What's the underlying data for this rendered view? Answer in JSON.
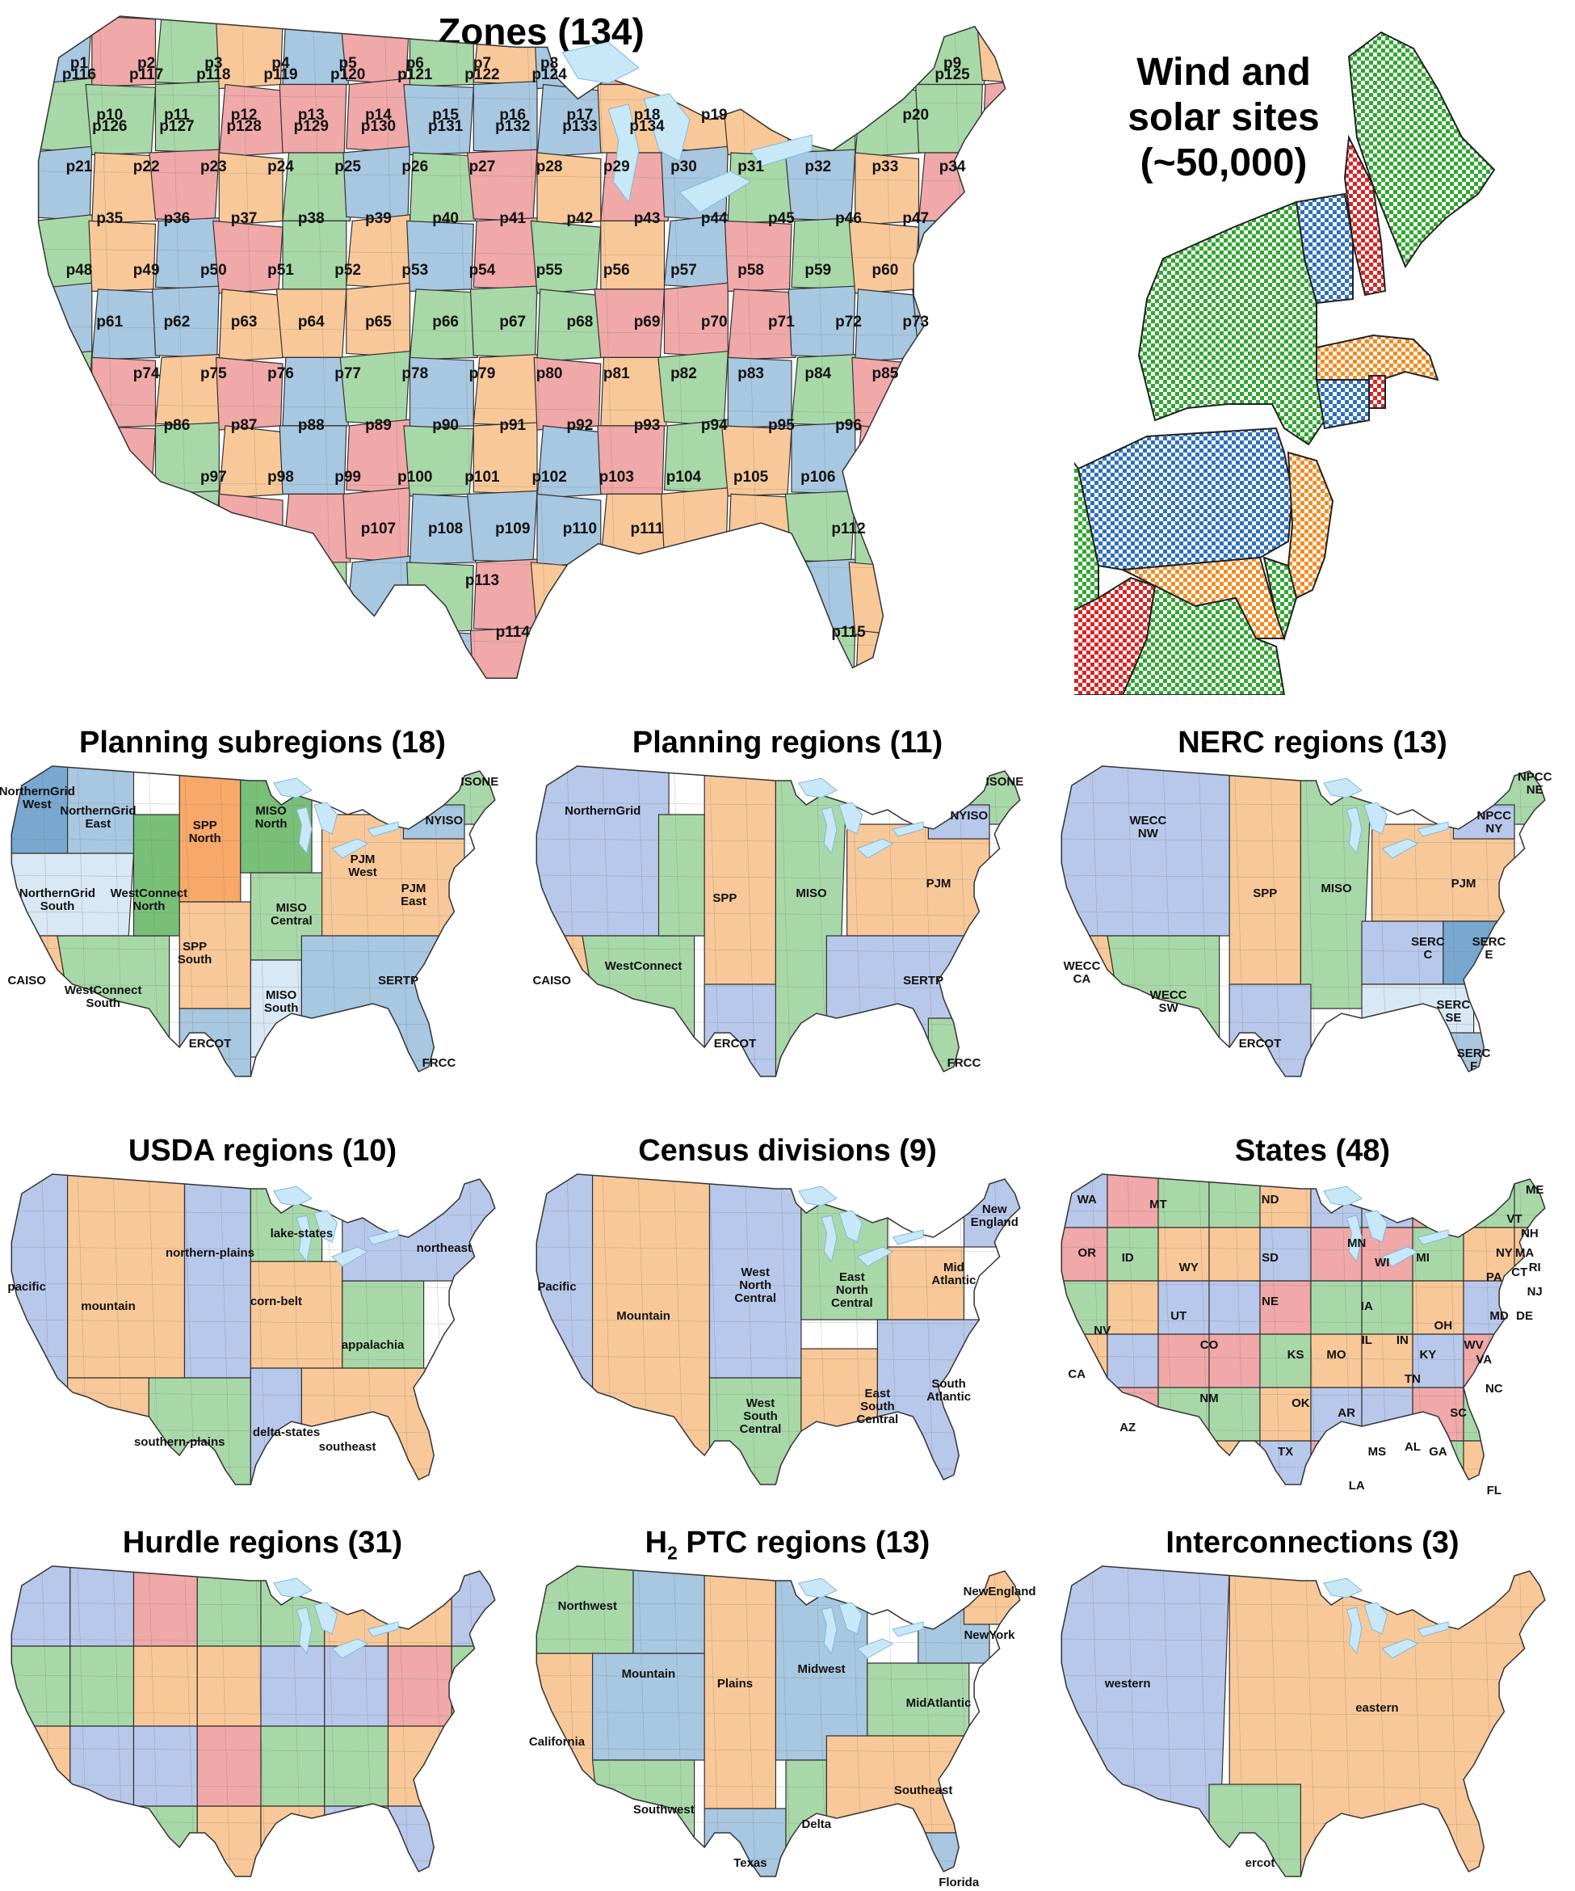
{
  "colors": {
    "blue": "#a8c7e0",
    "orange": "#f9c898",
    "green": "#a8d8a8",
    "red": "#f0a8a8",
    "periwinkle": "#b8c8ea",
    "lake": "#c8e8f8",
    "border": "#333333",
    "orange_dark": "#f8a868",
    "green_dark": "#78c078",
    "blue_dark": "#78a8d0",
    "blue_light": "#d8e8f4"
  },
  "zones_panel": {
    "title": "Zones (134)",
    "labels": [
      "p1",
      "p2",
      "p3",
      "p4",
      "p5",
      "p6",
      "p7",
      "p8",
      "p9",
      "p10",
      "p11",
      "p12",
      "p13",
      "p14",
      "p15",
      "p16",
      "p17",
      "p18",
      "p19",
      "p20",
      "p21",
      "p22",
      "p23",
      "p24",
      "p25",
      "p26",
      "p27",
      "p28",
      "p29",
      "p30",
      "p31",
      "p32",
      "p33",
      "p34",
      "p35",
      "p36",
      "p37",
      "p38",
      "p39",
      "p40",
      "p41",
      "p42",
      "p43",
      "p44",
      "p45",
      "p46",
      "p47",
      "p48",
      "p49",
      "p50",
      "p51",
      "p52",
      "p53",
      "p54",
      "p55",
      "p56",
      "p57",
      "p58",
      "p59",
      "p60",
      "p61",
      "p62",
      "p63",
      "p64",
      "p65",
      "p66",
      "p67",
      "p68",
      "p69",
      "p70",
      "p71",
      "p72",
      "p73",
      "p74",
      "p75",
      "p76",
      "p77",
      "p78",
      "p79",
      "p80",
      "p81",
      "p82",
      "p83",
      "p84",
      "p85",
      "p86",
      "p87",
      "p88",
      "p89",
      "p90",
      "p91",
      "p92",
      "p93",
      "p94",
      "p95",
      "p96",
      "p97",
      "p98",
      "p99",
      "p100",
      "p101",
      "p102",
      "p103",
      "p104",
      "p105",
      "p106",
      "p107",
      "p108",
      "p109",
      "p110",
      "p111",
      "p112",
      "p113",
      "p114",
      "p115",
      "p116",
      "p117",
      "p118",
      "p119",
      "p120",
      "p121",
      "p122",
      "p124",
      "p125",
      "p126",
      "p127",
      "p128",
      "p129",
      "p130",
      "p131",
      "p132",
      "p133",
      "p134"
    ]
  },
  "wind_panel": {
    "title_line1": "Wind and",
    "title_line2": "solar sites",
    "title_line3": "(~50,000)"
  },
  "small_maps": [
    {
      "title": "Planning subregions (18)",
      "labels": [
        {
          "text": "NorthernGrid West",
          "lines": [
            "NorthernGrid",
            "West"
          ]
        },
        {
          "text": "NorthernGrid East",
          "lines": [
            "NorthernGrid",
            "East"
          ]
        },
        {
          "text": "SPP North",
          "lines": [
            "SPP",
            "North"
          ]
        },
        {
          "text": "MISO North",
          "lines": [
            "MISO",
            "North"
          ]
        },
        {
          "text": "ISONE",
          "lines": [
            "ISONE"
          ]
        },
        {
          "text": "NYISO",
          "lines": [
            "NYISO"
          ]
        },
        {
          "text": "PJM West",
          "lines": [
            "PJM",
            "West"
          ]
        },
        {
          "text": "NorthernGrid South",
          "lines": [
            "NorthernGrid",
            "South"
          ]
        },
        {
          "text": "WestConnect North",
          "lines": [
            "WestConnect",
            "North"
          ]
        },
        {
          "text": "MISO Central",
          "lines": [
            "MISO",
            "Central"
          ]
        },
        {
          "text": "PJM East",
          "lines": [
            "PJM",
            "East"
          ]
        },
        {
          "text": "CAISO",
          "lines": [
            "CAISO"
          ]
        },
        {
          "text": "SPP South",
          "lines": [
            "SPP",
            "South"
          ]
        },
        {
          "text": "WestConnect South",
          "lines": [
            "WestConnect",
            "South"
          ]
        },
        {
          "text": "SERTP",
          "lines": [
            "SERTP"
          ]
        },
        {
          "text": "MISO South",
          "lines": [
            "MISO",
            "South"
          ]
        },
        {
          "text": "ERCOT",
          "lines": [
            "ERCOT"
          ]
        },
        {
          "text": "FRCC",
          "lines": [
            "FRCC"
          ]
        }
      ]
    },
    {
      "title": "Planning regions (11)",
      "labels": [
        {
          "text": "NorthernGrid",
          "lines": [
            "NorthernGrid"
          ]
        },
        {
          "text": "ISONE",
          "lines": [
            "ISONE"
          ]
        },
        {
          "text": "NYISO",
          "lines": [
            "NYISO"
          ]
        },
        {
          "text": "SPP",
          "lines": [
            "SPP"
          ]
        },
        {
          "text": "MISO",
          "lines": [
            "MISO"
          ]
        },
        {
          "text": "PJM",
          "lines": [
            "PJM"
          ]
        },
        {
          "text": "CAISO",
          "lines": [
            "CAISO"
          ]
        },
        {
          "text": "WestConnect",
          "lines": [
            "WestConnect"
          ]
        },
        {
          "text": "SERTP",
          "lines": [
            "SERTP"
          ]
        },
        {
          "text": "ERCOT",
          "lines": [
            "ERCOT"
          ]
        },
        {
          "text": "FRCC",
          "lines": [
            "FRCC"
          ]
        }
      ]
    },
    {
      "title": "NERC regions (13)",
      "labels": [
        {
          "text": "NPCC NE",
          "lines": [
            "NPCC",
            "NE"
          ]
        },
        {
          "text": "WECC NW",
          "lines": [
            "WECC",
            "NW"
          ]
        },
        {
          "text": "NPCC NY",
          "lines": [
            "NPCC",
            "NY"
          ]
        },
        {
          "text": "SPP",
          "lines": [
            "SPP"
          ]
        },
        {
          "text": "MISO",
          "lines": [
            "MISO"
          ]
        },
        {
          "text": "PJM",
          "lines": [
            "PJM"
          ]
        },
        {
          "text": "WECC CA",
          "lines": [
            "WECC",
            "CA"
          ]
        },
        {
          "text": "SERC C",
          "lines": [
            "SERC",
            "C"
          ]
        },
        {
          "text": "SERC E",
          "lines": [
            "SERC",
            "E"
          ]
        },
        {
          "text": "WECC SW",
          "lines": [
            "WECC",
            "SW"
          ]
        },
        {
          "text": "SERC SE",
          "lines": [
            "SERC",
            "SE"
          ]
        },
        {
          "text": "ERCOT",
          "lines": [
            "ERCOT"
          ]
        },
        {
          "text": "SERC F",
          "lines": [
            "SERC",
            "F"
          ]
        }
      ]
    },
    {
      "title": "USDA regions (10)",
      "labels": [
        {
          "text": "lake-states",
          "lines": [
            "lake-states"
          ]
        },
        {
          "text": "northeast",
          "lines": [
            "northeast"
          ]
        },
        {
          "text": "pacific",
          "lines": [
            "pacific"
          ]
        },
        {
          "text": "northern-plains",
          "lines": [
            "northern-plains"
          ]
        },
        {
          "text": "mountain",
          "lines": [
            "mountain"
          ]
        },
        {
          "text": "corn-belt",
          "lines": [
            "corn-belt"
          ]
        },
        {
          "text": "appalachia",
          "lines": [
            "appalachia"
          ]
        },
        {
          "text": "delta-states",
          "lines": [
            "delta-states"
          ]
        },
        {
          "text": "southern-plains",
          "lines": [
            "southern-plains"
          ]
        },
        {
          "text": "southeast",
          "lines": [
            "southeast"
          ]
        }
      ]
    },
    {
      "title": "Census divisions (9)",
      "labels": [
        {
          "text": "New England",
          "lines": [
            "New",
            "England"
          ]
        },
        {
          "text": "Pacific",
          "lines": [
            "Pacific"
          ]
        },
        {
          "text": "West North Central",
          "lines": [
            "West",
            "North",
            "Central"
          ]
        },
        {
          "text": "East North Central",
          "lines": [
            "East",
            "North",
            "Central"
          ]
        },
        {
          "text": "Mid Atlantic",
          "lines": [
            "Mid",
            "Atlantic"
          ]
        },
        {
          "text": "Mountain",
          "lines": [
            "Mountain"
          ]
        },
        {
          "text": "South Atlantic",
          "lines": [
            "South",
            "Atlantic"
          ]
        },
        {
          "text": "West South Central",
          "lines": [
            "West",
            "South",
            "Central"
          ]
        },
        {
          "text": "East South Central",
          "lines": [
            "East",
            "South",
            "Central"
          ]
        }
      ]
    },
    {
      "title": "States (48)",
      "labels": [
        {
          "text": "WA",
          "lines": [
            "WA"
          ]
        },
        {
          "text": "MT",
          "lines": [
            "MT"
          ]
        },
        {
          "text": "ND",
          "lines": [
            "ND"
          ]
        },
        {
          "text": "ME",
          "lines": [
            "ME"
          ]
        },
        {
          "text": "OR",
          "lines": [
            "OR"
          ]
        },
        {
          "text": "ID",
          "lines": [
            "ID"
          ]
        },
        {
          "text": "MN",
          "lines": [
            "MN"
          ]
        },
        {
          "text": "SD",
          "lines": [
            "SD"
          ]
        },
        {
          "text": "WY",
          "lines": [
            "WY"
          ]
        },
        {
          "text": "WI",
          "lines": [
            "WI"
          ]
        },
        {
          "text": "MI",
          "lines": [
            "MI"
          ]
        },
        {
          "text": "NY",
          "lines": [
            "NY"
          ]
        },
        {
          "text": "NH",
          "lines": [
            "NH"
          ]
        },
        {
          "text": "MA",
          "lines": [
            "MA"
          ]
        },
        {
          "text": "CT",
          "lines": [
            "CT"
          ]
        },
        {
          "text": "RI",
          "lines": [
            "RI"
          ]
        },
        {
          "text": "NJ",
          "lines": [
            "NJ"
          ]
        },
        {
          "text": "PA",
          "lines": [
            "PA"
          ]
        },
        {
          "text": "NE",
          "lines": [
            "NE"
          ]
        },
        {
          "text": "IA",
          "lines": [
            "IA"
          ]
        },
        {
          "text": "UT",
          "lines": [
            "UT"
          ]
        },
        {
          "text": "NV",
          "lines": [
            "NV"
          ]
        },
        {
          "text": "IL",
          "lines": [
            "IL"
          ]
        },
        {
          "text": "IN",
          "lines": [
            "IN"
          ]
        },
        {
          "text": "OH",
          "lines": [
            "OH"
          ]
        },
        {
          "text": "MD",
          "lines": [
            "MD"
          ]
        },
        {
          "text": "DE",
          "lines": [
            "DE"
          ]
        },
        {
          "text": "CA",
          "lines": [
            "CA"
          ]
        },
        {
          "text": "CO",
          "lines": [
            "CO"
          ]
        },
        {
          "text": "KS",
          "lines": [
            "KS"
          ]
        },
        {
          "text": "MO",
          "lines": [
            "MO"
          ]
        },
        {
          "text": "WV",
          "lines": [
            "WV"
          ]
        },
        {
          "text": "KY",
          "lines": [
            "KY"
          ]
        },
        {
          "text": "VA",
          "lines": [
            "VA"
          ]
        },
        {
          "text": "AZ",
          "lines": [
            "AZ"
          ]
        },
        {
          "text": "NM",
          "lines": [
            "NM"
          ]
        },
        {
          "text": "OK",
          "lines": [
            "OK"
          ]
        },
        {
          "text": "TN",
          "lines": [
            "TN"
          ]
        },
        {
          "text": "NC",
          "lines": [
            "NC"
          ]
        },
        {
          "text": "AR",
          "lines": [
            "AR"
          ]
        },
        {
          "text": "SC",
          "lines": [
            "SC"
          ]
        },
        {
          "text": "MS",
          "lines": [
            "MS"
          ]
        },
        {
          "text": "AL",
          "lines": [
            "AL"
          ]
        },
        {
          "text": "GA",
          "lines": [
            "GA"
          ]
        },
        {
          "text": "TX",
          "lines": [
            "TX"
          ]
        },
        {
          "text": "LA",
          "lines": [
            "LA"
          ]
        },
        {
          "text": "FL",
          "lines": [
            "FL"
          ]
        },
        {
          "text": "VT",
          "lines": [
            "VT"
          ]
        }
      ]
    },
    {
      "title": "Hurdle regions (31)",
      "labels": []
    },
    {
      "title_main": "H",
      "title_sub": "2",
      "title_rest": " PTC regions (13)",
      "labels": [
        {
          "text": "Northwest",
          "lines": [
            "Northwest"
          ]
        },
        {
          "text": "NewEngland",
          "lines": [
            "NewEngland"
          ]
        },
        {
          "text": "Mountain",
          "lines": [
            "Mountain"
          ]
        },
        {
          "text": "Midwest",
          "lines": [
            "Midwest"
          ]
        },
        {
          "text": "NewYork",
          "lines": [
            "NewYork"
          ]
        },
        {
          "text": "Plains",
          "lines": [
            "Plains"
          ]
        },
        {
          "text": "California",
          "lines": [
            "California"
          ]
        },
        {
          "text": "MidAtlantic",
          "lines": [
            "MidAtlantic"
          ]
        },
        {
          "text": "Southwest",
          "lines": [
            "Southwest"
          ]
        },
        {
          "text": "Southeast",
          "lines": [
            "Southeast"
          ]
        },
        {
          "text": "Delta",
          "lines": [
            "Delta"
          ]
        },
        {
          "text": "Texas",
          "lines": [
            "Texas"
          ]
        },
        {
          "text": "Florida",
          "lines": [
            "Florida"
          ]
        }
      ]
    },
    {
      "title": "Interconnections (3)",
      "labels": [
        {
          "text": "western",
          "lines": [
            "western"
          ]
        },
        {
          "text": "eastern",
          "lines": [
            "eastern"
          ]
        },
        {
          "text": "ercot",
          "lines": [
            "ercot"
          ]
        }
      ]
    }
  ]
}
